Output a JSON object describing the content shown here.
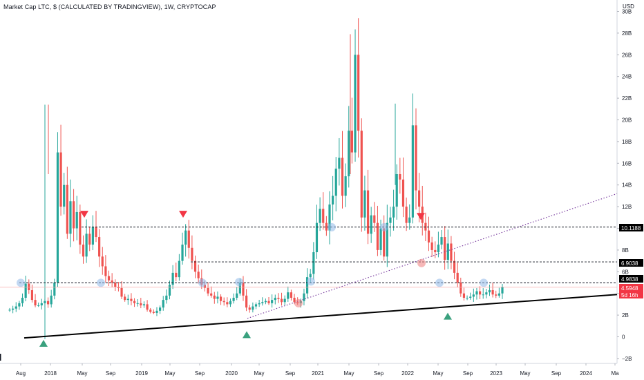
{
  "header": {
    "title": "Market Cap LTC, $ (CALCULATED BY TRADINGVIEW), 1W, CRYPTOCAP",
    "unit": "USD"
  },
  "chart_data": {
    "type": "candlestick",
    "title": "Market Cap LTC, $ (CALCULATED BY TRADINGVIEW), 1W, CRYPTOCAP",
    "ylabel": "USD",
    "ylim": [
      -2.5,
      30
    ],
    "y_ticks": [
      "−2B",
      "0",
      "2B",
      "4B",
      "6B",
      "8B",
      "10B",
      "12B",
      "14B",
      "16B",
      "18B",
      "20B",
      "22B",
      "24B",
      "26B",
      "28B",
      "30B"
    ],
    "x_ticks": [
      "Aug",
      "2018",
      "May",
      "Sep",
      "2019",
      "May",
      "Sep",
      "2020",
      "May",
      "Sep",
      "2021",
      "May",
      "Sep",
      "2022",
      "May",
      "Sep",
      "2023",
      "May",
      "Sep",
      "2024",
      "Ma"
    ],
    "price_levels": [
      {
        "label": "10.1188",
        "value": 10.1188,
        "color": "#000000"
      },
      {
        "label": "6.9038",
        "value": 6.9038,
        "color": "#000000"
      },
      {
        "label": "4.9838",
        "value": 4.9838,
        "color": "#000000"
      },
      {
        "label": "4.5948",
        "value": 4.5948,
        "color": "#f23645"
      },
      {
        "label": "5d 16h",
        "value": 4.05,
        "color": "#f23645"
      }
    ],
    "candles_close": [
      2.5,
      2.6,
      2.8,
      3.1,
      3.6,
      4.9,
      4.3,
      3.4,
      2.9,
      2.9,
      3.1,
      3.3,
      3.0,
      3.8,
      5.0,
      17.0,
      12.0,
      14.0,
      9.5,
      12.5,
      10.0,
      11.5,
      8.5,
      7.4,
      9.5,
      8.5,
      10.1,
      9.2,
      7.4,
      6.5,
      5.6,
      5.2,
      5.0,
      4.6,
      4.5,
      3.7,
      3.4,
      3.5,
      3.3,
      3.1,
      3.1,
      2.9,
      3.0,
      2.5,
      2.3,
      2.2,
      2.4,
      2.7,
      3.4,
      3.8,
      4.8,
      5.9,
      5.5,
      7.0,
      8.5,
      9.8,
      8.2,
      7.0,
      6.0,
      5.4,
      4.8,
      4.5,
      4.0,
      3.8,
      3.5,
      3.7,
      3.3,
      3.2,
      3.0,
      3.3,
      3.6,
      4.0,
      5.0,
      3.8,
      2.7,
      2.5,
      2.8,
      3.0,
      3.1,
      3.2,
      3.3,
      3.1,
      3.4,
      3.6,
      3.5,
      3.2,
      3.5,
      4.1,
      3.6,
      3.2,
      3.1,
      3.3,
      4.0,
      5.5,
      5.8,
      7.8,
      10.5,
      11.8,
      10.5,
      9.8,
      12.2,
      13.0,
      15.5,
      16.5,
      13.0,
      14.8,
      19.0,
      17.0,
      26.0,
      19.0,
      11.0,
      13.5,
      9.5,
      11.2,
      10.5,
      8.0,
      10.0,
      7.4,
      10.5,
      11.0,
      12.0,
      15.0,
      14.5,
      12.0,
      10.5,
      11.0,
      19.5,
      13.5,
      12.0,
      10.5,
      9.8,
      8.7,
      8.0,
      7.8,
      8.5,
      9.2,
      7.1,
      8.6,
      7.0,
      5.9,
      5.0,
      4.0,
      3.6,
      3.6,
      3.7,
      3.9,
      4.2,
      3.9,
      3.9,
      4.1,
      4.3,
      3.9,
      3.8,
      4.0,
      4.6
    ]
  }
}
